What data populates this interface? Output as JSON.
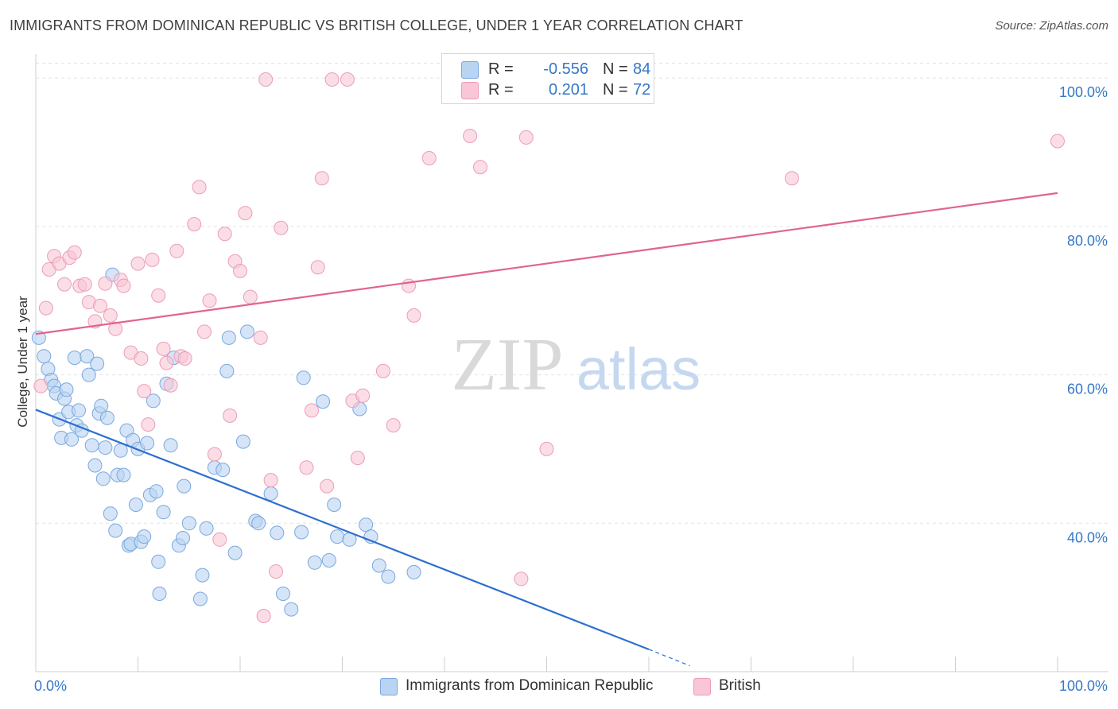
{
  "title": "IMMIGRANTS FROM DOMINICAN REPUBLIC VS BRITISH COLLEGE, UNDER 1 YEAR CORRELATION CHART",
  "source": "Source: ZipAtlas.com",
  "watermark": {
    "zip": "ZIP",
    "atlas": "atlas"
  },
  "legend": {
    "rows": [
      {
        "r_label": "R =",
        "r_value": "-0.556",
        "n_label": "N =",
        "n_value": "84"
      },
      {
        "r_label": "R =",
        "r_value": "0.201",
        "n_label": "N =",
        "n_value": "72"
      }
    ]
  },
  "colors": {
    "blue_fill": "#b9d3f2",
    "blue_stroke": "#7aa8de",
    "blue_line": "#2d6fd0",
    "pink_fill": "#f8c6d6",
    "pink_stroke": "#ec9db7",
    "pink_line": "#e0648e",
    "tick_label": "#3577c9",
    "grid": "#e3e3e3"
  },
  "chart_data": {
    "type": "scatter",
    "title": "IMMIGRANTS FROM DOMINICAN REPUBLIC VS BRITISH COLLEGE, UNDER 1 YEAR CORRELATION CHART",
    "xlabel": "",
    "ylabel": "College, Under 1 year",
    "xlim": [
      0,
      100
    ],
    "ylim": [
      20,
      102
    ],
    "x_tick_labels": [
      "0.0%",
      "100.0%"
    ],
    "y_ticks": [
      40,
      60,
      80,
      100
    ],
    "y_tick_labels": [
      "40.0%",
      "60.0%",
      "80.0%",
      "100.0%"
    ],
    "grid": true,
    "legend_position": "top-center",
    "series": [
      {
        "name": "Immigrants from Dominican Republic",
        "color": "#b9d3f2",
        "R": -0.556,
        "N": 84,
        "trend": {
          "x": [
            0,
            60
          ],
          "y": [
            55.3,
            23.0
          ],
          "dashed_to": {
            "x": 64,
            "y": 20.8
          }
        },
        "points": [
          [
            0.3,
            65.0
          ],
          [
            0.8,
            62.5
          ],
          [
            1.2,
            60.8
          ],
          [
            1.5,
            59.3
          ],
          [
            1.8,
            58.5
          ],
          [
            2.0,
            57.5
          ],
          [
            2.3,
            54.0
          ],
          [
            2.5,
            51.5
          ],
          [
            2.8,
            56.8
          ],
          [
            3.2,
            55.0
          ],
          [
            3.5,
            51.3
          ],
          [
            3.8,
            62.3
          ],
          [
            4.0,
            53.2
          ],
          [
            4.2,
            55.2
          ],
          [
            4.5,
            52.5
          ],
          [
            5.0,
            62.5
          ],
          [
            5.2,
            60.0
          ],
          [
            5.5,
            50.5
          ],
          [
            5.8,
            47.8
          ],
          [
            6.0,
            61.5
          ],
          [
            6.2,
            54.8
          ],
          [
            6.4,
            55.8
          ],
          [
            6.6,
            46.0
          ],
          [
            6.8,
            50.2
          ],
          [
            7.0,
            54.2
          ],
          [
            7.3,
            41.3
          ],
          [
            7.5,
            73.5
          ],
          [
            7.8,
            39.0
          ],
          [
            8.0,
            46.5
          ],
          [
            8.3,
            49.8
          ],
          [
            8.6,
            46.5
          ],
          [
            8.9,
            52.5
          ],
          [
            9.1,
            37.0
          ],
          [
            9.3,
            37.2
          ],
          [
            9.5,
            51.2
          ],
          [
            9.8,
            42.5
          ],
          [
            10.0,
            50.0
          ],
          [
            10.3,
            37.5
          ],
          [
            10.6,
            38.2
          ],
          [
            10.9,
            50.8
          ],
          [
            11.2,
            43.8
          ],
          [
            11.5,
            56.5
          ],
          [
            11.8,
            44.3
          ],
          [
            12.0,
            34.8
          ],
          [
            12.5,
            41.5
          ],
          [
            12.8,
            58.8
          ],
          [
            13.2,
            50.5
          ],
          [
            13.5,
            62.3
          ],
          [
            14.0,
            37.0
          ],
          [
            14.5,
            45.0
          ],
          [
            15.0,
            40.0
          ],
          [
            16.3,
            33.0
          ],
          [
            16.7,
            39.3
          ],
          [
            17.5,
            47.5
          ],
          [
            18.3,
            47.2
          ],
          [
            18.7,
            60.5
          ],
          [
            19.5,
            36.0
          ],
          [
            20.3,
            51.0
          ],
          [
            21.5,
            40.3
          ],
          [
            21.8,
            40.0
          ],
          [
            23.0,
            44.0
          ],
          [
            23.6,
            38.7
          ],
          [
            24.2,
            30.5
          ],
          [
            25.0,
            28.4
          ],
          [
            26.0,
            38.8
          ],
          [
            26.2,
            59.6
          ],
          [
            27.3,
            34.7
          ],
          [
            28.1,
            56.4
          ],
          [
            28.7,
            35.0
          ],
          [
            29.2,
            42.5
          ],
          [
            29.5,
            38.2
          ],
          [
            30.7,
            37.8
          ],
          [
            31.7,
            55.4
          ],
          [
            32.3,
            39.8
          ],
          [
            32.8,
            38.2
          ],
          [
            33.6,
            34.3
          ],
          [
            34.5,
            32.8
          ],
          [
            37.0,
            33.4
          ],
          [
            18.9,
            65.0
          ],
          [
            20.7,
            65.8
          ],
          [
            12.1,
            30.5
          ],
          [
            16.1,
            29.8
          ],
          [
            14.4,
            38.0
          ],
          [
            3.0,
            58.0
          ]
        ]
      },
      {
        "name": "British",
        "color": "#f8c6d6",
        "R": 0.201,
        "N": 72,
        "trend": {
          "x": [
            0,
            100
          ],
          "y": [
            65.5,
            84.5
          ]
        },
        "points": [
          [
            0.5,
            58.5
          ],
          [
            1.0,
            69.0
          ],
          [
            1.3,
            74.2
          ],
          [
            1.8,
            76.0
          ],
          [
            2.3,
            75.0
          ],
          [
            2.8,
            72.2
          ],
          [
            3.3,
            75.8
          ],
          [
            3.8,
            76.5
          ],
          [
            4.3,
            72.0
          ],
          [
            4.8,
            72.2
          ],
          [
            5.2,
            69.8
          ],
          [
            5.8,
            67.2
          ],
          [
            6.3,
            69.3
          ],
          [
            6.8,
            72.3
          ],
          [
            7.3,
            68.0
          ],
          [
            7.8,
            66.2
          ],
          [
            8.3,
            72.8
          ],
          [
            8.6,
            72.0
          ],
          [
            9.3,
            63.0
          ],
          [
            10.0,
            75.0
          ],
          [
            10.3,
            62.2
          ],
          [
            10.6,
            57.8
          ],
          [
            11.0,
            53.3
          ],
          [
            11.4,
            75.5
          ],
          [
            12.0,
            70.7
          ],
          [
            12.5,
            63.5
          ],
          [
            12.8,
            61.6
          ],
          [
            13.2,
            58.6
          ],
          [
            13.8,
            76.7
          ],
          [
            14.2,
            62.5
          ],
          [
            14.6,
            62.2
          ],
          [
            15.5,
            80.3
          ],
          [
            16.0,
            85.3
          ],
          [
            16.5,
            65.8
          ],
          [
            17.0,
            70.0
          ],
          [
            17.5,
            49.3
          ],
          [
            18.0,
            37.8
          ],
          [
            18.5,
            79.0
          ],
          [
            19.0,
            54.5
          ],
          [
            19.5,
            75.3
          ],
          [
            20.0,
            74.0
          ],
          [
            20.5,
            81.8
          ],
          [
            21.0,
            70.5
          ],
          [
            22.0,
            65.0
          ],
          [
            22.3,
            27.5
          ],
          [
            23.0,
            45.8
          ],
          [
            23.5,
            33.5
          ],
          [
            24.0,
            79.8
          ],
          [
            26.5,
            47.5
          ],
          [
            27.0,
            55.2
          ],
          [
            27.6,
            74.5
          ],
          [
            28.0,
            86.5
          ],
          [
            28.5,
            45.0
          ],
          [
            29.0,
            99.8
          ],
          [
            30.5,
            99.8
          ],
          [
            31.0,
            56.5
          ],
          [
            31.5,
            48.8
          ],
          [
            32.0,
            57.2
          ],
          [
            34.0,
            60.5
          ],
          [
            35.0,
            53.2
          ],
          [
            36.5,
            72.0
          ],
          [
            37.0,
            68.0
          ],
          [
            38.5,
            89.2
          ],
          [
            42.5,
            92.2
          ],
          [
            43.5,
            88.0
          ],
          [
            47.5,
            32.5
          ],
          [
            48.0,
            92.0
          ],
          [
            50.0,
            50.0
          ],
          [
            50.3,
            100.0
          ],
          [
            74.0,
            86.5
          ],
          [
            100.0,
            91.5
          ],
          [
            22.5,
            99.8
          ]
        ]
      }
    ]
  }
}
